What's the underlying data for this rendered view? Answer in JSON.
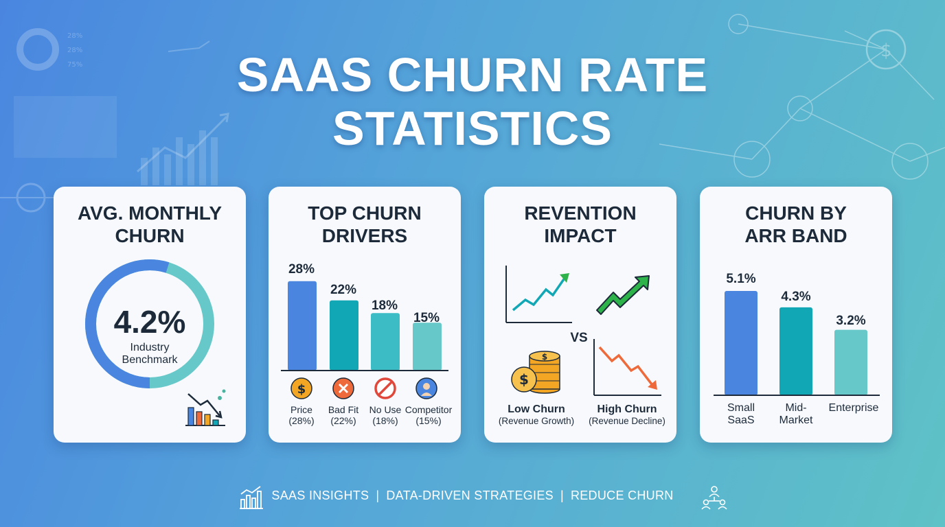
{
  "title": {
    "line1": "SAAS CHURN RATE",
    "line2": "STATISTICS"
  },
  "colors": {
    "blue": "#4a86df",
    "teal": "#12a7b5",
    "teal_mid": "#3cbcc5",
    "teal_light": "#66c8c8",
    "green": "#2db34a",
    "red": "#ef6a3a",
    "gold": "#f2a623"
  },
  "cards": {
    "avg": {
      "title_l1": "AVG. MONTHLY",
      "title_l2": "CHURN",
      "value": "4.2%",
      "caption_l1": "Industry",
      "caption_l2": "Benchmark",
      "icon": "declining-bar-chart-icon"
    },
    "drivers": {
      "title_l1": "TOP CHURN",
      "title_l2": "DRIVERS",
      "chart_data": {
        "type": "bar",
        "title": "TOP CHURN DRIVERS",
        "categories": [
          "Price",
          "Bad Fit",
          "No Use",
          "Competitor"
        ],
        "values": [
          28,
          22,
          18,
          15
        ],
        "value_labels": [
          "28%",
          "22%",
          "18%",
          "15%"
        ],
        "sublabels": [
          "(28%)",
          "(22%)",
          "(18%)",
          "(15%)"
        ],
        "icons": [
          "dollar-coin-icon",
          "x-mark-icon",
          "no-entry-icon",
          "person-icon"
        ]
      }
    },
    "revenue": {
      "title_l1": "REVENTION",
      "title_l2": "IMPACT",
      "vs": "VS",
      "low_l1": "Low Churn",
      "low_l2": "(Revenue Growth)",
      "high_l1": "High Churn",
      "high_l2": "(Revenue Decline)"
    },
    "arr": {
      "title_l1": "CHURN BY",
      "title_l2": "ARR BAND",
      "chart_data": {
        "type": "bar",
        "title": "CHURN BY ARR BAND",
        "categories": [
          "Small SaaS",
          "Mid-Market",
          "Enterprise"
        ],
        "label_lines": [
          [
            "Small",
            "SaaS"
          ],
          [
            "Mid-",
            "Market"
          ],
          [
            "Enterprise",
            ""
          ]
        ],
        "values": [
          5.1,
          4.3,
          3.2
        ],
        "value_labels": [
          "5.1%",
          "4.3%",
          "3.2%"
        ]
      }
    }
  },
  "footer": {
    "item1": "SAAS INSIGHTS",
    "item2": "DATA-DRIVEN STRATEGIES",
    "item3": "REDUCE CHURN",
    "sep": "|"
  },
  "background_text": {
    "p1": "28%",
    "p2": "28%",
    "p3": "75%"
  }
}
